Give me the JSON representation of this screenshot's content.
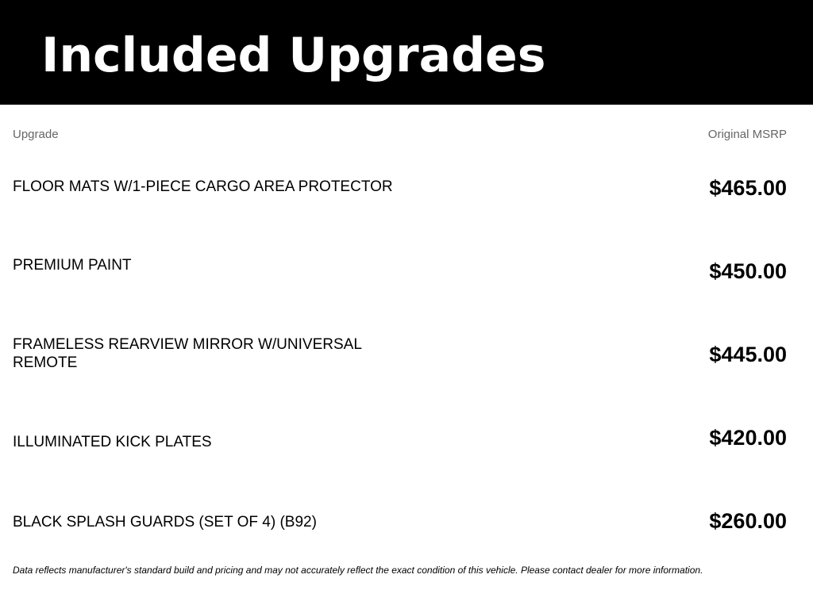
{
  "header": {
    "title": "Included Upgrades"
  },
  "columns": {
    "upgrade": "Upgrade",
    "msrp": "Original MSRP"
  },
  "rows": [
    {
      "name": "FLOOR MATS W/1-PIECE CARGO AREA PROTECTOR",
      "price": "$465.00"
    },
    {
      "name": "PREMIUM PAINT",
      "price": "$450.00"
    },
    {
      "name": "FRAMELESS REARVIEW MIRROR W/UNIVERSAL REMOTE",
      "price": "$445.00"
    },
    {
      "name": "ILLUMINATED KICK PLATES",
      "price": "$420.00"
    },
    {
      "name": "BLACK SPLASH GUARDS (SET OF 4) (B92)",
      "price": "$260.00"
    }
  ],
  "disclaimer": "Data reflects manufacturer's standard build and pricing and may not accurately reflect the exact condition of this vehicle. Please contact dealer for more information."
}
